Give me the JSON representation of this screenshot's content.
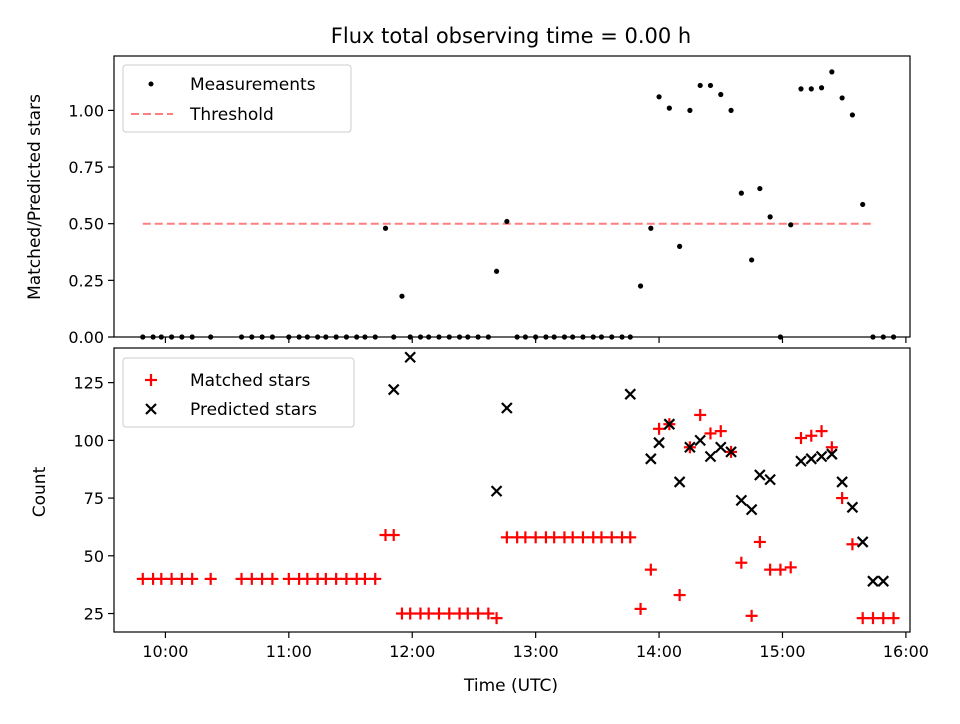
{
  "chart_data": [
    {
      "type": "scatter",
      "title": "Flux total observing time = 0.00 h",
      "xlabel": "",
      "ylabel": "Matched/Predicted stars",
      "ylim": [
        0,
        1.24
      ],
      "yticks": [
        "0.00",
        "0.25",
        "0.50",
        "0.75",
        "1.00"
      ],
      "ytick_values": [
        0,
        0.25,
        0.5,
        0.75,
        1.0
      ],
      "xlim": [
        "09:35",
        "16:02"
      ],
      "legend_position": "top-left",
      "colors": {
        "measurements": "#000000",
        "threshold": "#ff7f7f"
      },
      "series": [
        {
          "name": "Measurements",
          "marker": "dot",
          "x": [
            "09:49",
            "09:54",
            "09:58",
            "10:03",
            "10:08",
            "10:13",
            "10:22",
            "10:37",
            "10:42",
            "10:47",
            "10:52",
            "11:00",
            "11:05",
            "11:09",
            "11:14",
            "11:18",
            "11:23",
            "11:28",
            "11:33",
            "11:37",
            "11:42",
            "11:47",
            "11:51",
            "11:55",
            "11:59",
            "12:04",
            "12:08",
            "12:13",
            "12:18",
            "12:23",
            "12:27",
            "12:32",
            "12:37",
            "12:41",
            "12:46",
            "12:51",
            "12:55",
            "13:00",
            "13:05",
            "13:09",
            "13:14",
            "13:18",
            "13:23",
            "13:28",
            "13:32",
            "13:37",
            "13:42",
            "13:46",
            "13:51",
            "13:56",
            "14:00",
            "14:05",
            "14:10",
            "14:15",
            "14:20",
            "14:25",
            "14:30",
            "14:35",
            "14:40",
            "14:45",
            "14:49",
            "14:54",
            "14:59",
            "15:04",
            "15:09",
            "15:14",
            "15:19",
            "15:24",
            "15:29",
            "15:34",
            "15:39",
            "15:44",
            "15:49",
            "15:54"
          ],
          "y": [
            0,
            0,
            0,
            0,
            0,
            0,
            0,
            0,
            0,
            0,
            0,
            0,
            0,
            0,
            0,
            0,
            0,
            0,
            0,
            0,
            0,
            0.48,
            0,
            0.18,
            0,
            0,
            0,
            0,
            0,
            0,
            0,
            0,
            0,
            0.29,
            0.51,
            0,
            0,
            0,
            0,
            0,
            0,
            0,
            0,
            0,
            0,
            0,
            0,
            0,
            0.225,
            0.48,
            1.06,
            1.01,
            0.4,
            1.0,
            1.11,
            1.11,
            1.07,
            1.0,
            0.635,
            0.34,
            0.655,
            0.53,
            0,
            0.495,
            1.095,
            1.095,
            1.1,
            1.17,
            1.055,
            0.98,
            0.585,
            0,
            0,
            0
          ]
        },
        {
          "name": "Threshold",
          "marker": "dashed-line",
          "x": [
            "09:49",
            "15:43"
          ],
          "y": [
            0.5,
            0.5
          ]
        }
      ]
    },
    {
      "type": "scatter",
      "title": "",
      "xlabel": "Time (UTC)",
      "ylabel": "Count",
      "ylim": [
        17,
        140
      ],
      "yticks": [
        "25",
        "50",
        "75",
        "100",
        "125"
      ],
      "ytick_values": [
        25,
        50,
        75,
        100,
        125
      ],
      "xlim": [
        "09:35",
        "16:02"
      ],
      "xticks": [
        "10:00",
        "11:00",
        "12:00",
        "13:00",
        "14:00",
        "15:00",
        "16:00"
      ],
      "legend_position": "top-left",
      "colors": {
        "matched": "#ff0000",
        "predicted": "#000000"
      },
      "series": [
        {
          "name": "Matched stars",
          "marker": "plus",
          "x": [
            "09:49",
            "09:54",
            "09:58",
            "10:03",
            "10:08",
            "10:13",
            "10:22",
            "10:37",
            "10:42",
            "10:47",
            "10:52",
            "11:00",
            "11:05",
            "11:09",
            "11:14",
            "11:18",
            "11:23",
            "11:28",
            "11:33",
            "11:37",
            "11:42",
            "11:47",
            "11:51",
            "11:55",
            "11:59",
            "12:04",
            "12:08",
            "12:13",
            "12:18",
            "12:23",
            "12:27",
            "12:32",
            "12:37",
            "12:41",
            "12:46",
            "12:51",
            "12:55",
            "13:00",
            "13:05",
            "13:09",
            "13:14",
            "13:18",
            "13:23",
            "13:28",
            "13:32",
            "13:37",
            "13:42",
            "13:46",
            "13:51",
            "13:56",
            "14:00",
            "14:05",
            "14:10",
            "14:15",
            "14:20",
            "14:25",
            "14:30",
            "14:35",
            "14:40",
            "14:45",
            "14:49",
            "14:54",
            "14:59",
            "15:04",
            "15:09",
            "15:14",
            "15:19",
            "15:24",
            "15:29",
            "15:34",
            "15:39",
            "15:44",
            "15:49",
            "15:54"
          ],
          "y": [
            40,
            40,
            40,
            40,
            40,
            40,
            40,
            40,
            40,
            40,
            40,
            40,
            40,
            40,
            40,
            40,
            40,
            40,
            40,
            40,
            40,
            59,
            59,
            25,
            25,
            25,
            25,
            25,
            25,
            25,
            25,
            25,
            25,
            23,
            58,
            58,
            58,
            58,
            58,
            58,
            58,
            58,
            58,
            58,
            58,
            58,
            58,
            58,
            27,
            44,
            105,
            107,
            33,
            97,
            111,
            103,
            104,
            95,
            47,
            24,
            56,
            44,
            44,
            45,
            101,
            102,
            104,
            97,
            75,
            55,
            23,
            23,
            23,
            23
          ]
        },
        {
          "name": "Predicted stars",
          "marker": "x",
          "x": [
            "11:51",
            "11:59",
            "12:41",
            "12:46",
            "13:46",
            "13:56",
            "14:00",
            "14:05",
            "14:10",
            "14:15",
            "14:20",
            "14:25",
            "14:30",
            "14:35",
            "14:40",
            "14:45",
            "14:49",
            "14:54",
            "15:09",
            "15:14",
            "15:19",
            "15:24",
            "15:29",
            "15:34",
            "15:39",
            "15:44",
            "15:49"
          ],
          "y": [
            122,
            136,
            78,
            114,
            120,
            92,
            99,
            107,
            82,
            97,
            100,
            93,
            97,
            95,
            74,
            70,
            85,
            83,
            91,
            92,
            93,
            94,
            82,
            71,
            56,
            39,
            39
          ]
        }
      ]
    }
  ]
}
